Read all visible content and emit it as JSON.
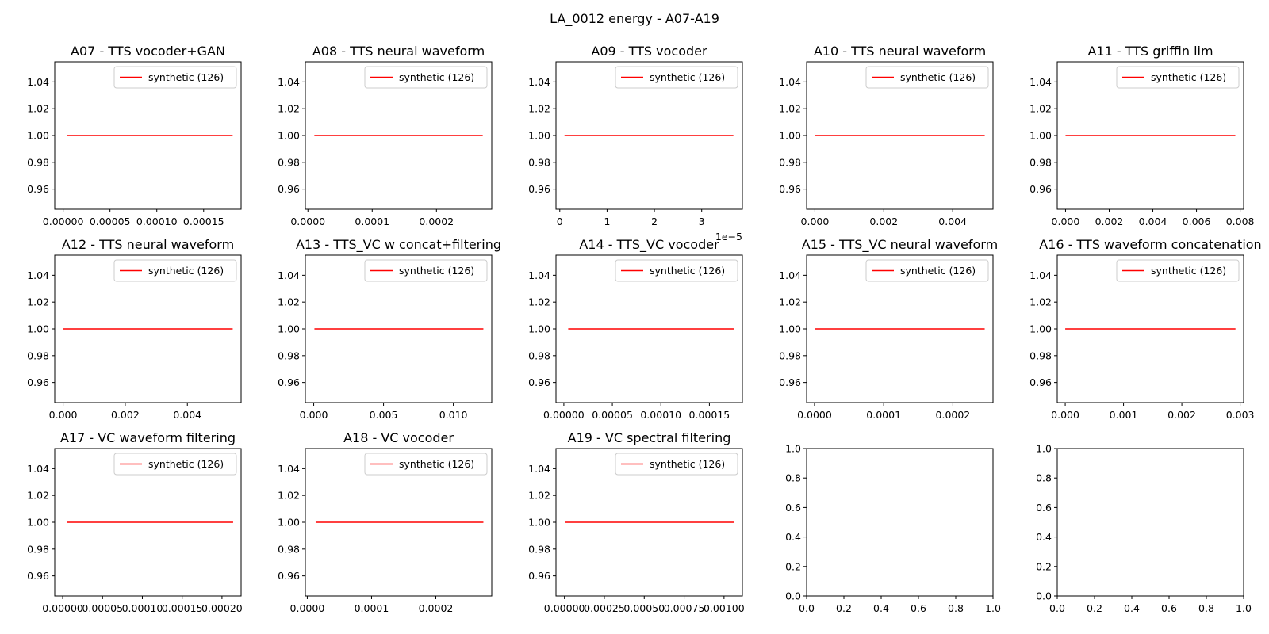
{
  "figure_title": "LA_0012 energy - A07-A19",
  "chart_data": [
    {
      "type": "line",
      "title": "A07 - TTS vocoder+GAN",
      "xlim": [
        -9e-06,
        0.00019
      ],
      "ylim": [
        0.945,
        1.055
      ],
      "xticks": [
        0,
        5e-05,
        0.0001,
        0.00015
      ],
      "xtick_labels": [
        "0.00000",
        "0.00005",
        "0.00010",
        "0.00015"
      ],
      "yticks": [
        0.96,
        0.98,
        1.0,
        1.02,
        1.04
      ],
      "ytick_labels": [
        "0.96",
        "0.98",
        "1.00",
        "1.02",
        "1.04"
      ],
      "x_offset_label": "",
      "series": [
        {
          "name": "synthetic (126)",
          "color": "#ff0000",
          "x": [
            4.5e-06,
            0.000181
          ],
          "y": [
            1.0,
            1.0
          ]
        }
      ],
      "legend": "upper-right"
    },
    {
      "type": "line",
      "title": "A08 - TTS neural waveform",
      "xlim": [
        -4e-06,
        0.000286
      ],
      "ylim": [
        0.945,
        1.055
      ],
      "xticks": [
        0,
        0.0001,
        0.0002
      ],
      "xtick_labels": [
        "0.0000",
        "0.0001",
        "0.0002"
      ],
      "yticks": [
        0.96,
        0.98,
        1.0,
        1.02,
        1.04
      ],
      "ytick_labels": [
        "0.96",
        "0.98",
        "1.00",
        "1.02",
        "1.04"
      ],
      "x_offset_label": "",
      "series": [
        {
          "name": "synthetic (126)",
          "color": "#ff0000",
          "x": [
            1e-05,
            0.000272
          ],
          "y": [
            1.0,
            1.0
          ]
        }
      ],
      "legend": "upper-right"
    },
    {
      "type": "line",
      "title": "A09 - TTS vocoder",
      "xlim": [
        -0.08,
        3.86
      ],
      "ylim": [
        0.945,
        1.055
      ],
      "xticks": [
        0,
        1,
        2,
        3
      ],
      "xtick_labels": [
        "0",
        "1",
        "2",
        "3"
      ],
      "yticks": [
        0.96,
        0.98,
        1.0,
        1.02,
        1.04
      ],
      "ytick_labels": [
        "0.96",
        "0.98",
        "1.00",
        "1.02",
        "1.04"
      ],
      "x_offset_label": "1e−5",
      "series": [
        {
          "name": "synthetic (126)",
          "color": "#ff0000",
          "x": [
            0.1,
            3.67
          ],
          "y": [
            1.0,
            1.0
          ]
        }
      ],
      "legend": "upper-right"
    },
    {
      "type": "line",
      "title": "A10 - TTS neural waveform",
      "xlim": [
        -0.00024,
        0.00517
      ],
      "ylim": [
        0.945,
        1.055
      ],
      "xticks": [
        0,
        0.002,
        0.004
      ],
      "xtick_labels": [
        "0.000",
        "0.002",
        "0.004"
      ],
      "yticks": [
        0.96,
        0.98,
        1.0,
        1.02,
        1.04
      ],
      "ytick_labels": [
        "0.96",
        "0.98",
        "1.00",
        "1.02",
        "1.04"
      ],
      "x_offset_label": "",
      "series": [
        {
          "name": "synthetic (126)",
          "color": "#ff0000",
          "x": [
            0.0,
            0.00493
          ],
          "y": [
            1.0,
            1.0
          ]
        }
      ],
      "legend": "upper-right"
    },
    {
      "type": "line",
      "title": "A11 - TTS griffin lim",
      "xlim": [
        -0.00038,
        0.00816
      ],
      "ylim": [
        0.945,
        1.055
      ],
      "xticks": [
        0,
        0.002,
        0.004,
        0.006,
        0.008
      ],
      "xtick_labels": [
        "0.000",
        "0.002",
        "0.004",
        "0.006",
        "0.008"
      ],
      "yticks": [
        0.96,
        0.98,
        1.0,
        1.02,
        1.04
      ],
      "ytick_labels": [
        "0.96",
        "0.98",
        "1.00",
        "1.02",
        "1.04"
      ],
      "x_offset_label": "",
      "series": [
        {
          "name": "synthetic (126)",
          "color": "#ff0000",
          "x": [
            0.0,
            0.00778
          ],
          "y": [
            1.0,
            1.0
          ]
        }
      ],
      "legend": "upper-right"
    },
    {
      "type": "line",
      "title": "A12 - TTS neural waveform",
      "xlim": [
        -0.00027,
        0.00573
      ],
      "ylim": [
        0.945,
        1.055
      ],
      "xticks": [
        0,
        0.002,
        0.004
      ],
      "xtick_labels": [
        "0.000",
        "0.002",
        "0.004"
      ],
      "yticks": [
        0.96,
        0.98,
        1.0,
        1.02,
        1.04
      ],
      "ytick_labels": [
        "0.96",
        "0.98",
        "1.00",
        "1.02",
        "1.04"
      ],
      "x_offset_label": "",
      "series": [
        {
          "name": "synthetic (126)",
          "color": "#ff0000",
          "x": [
            0.0,
            0.00546
          ],
          "y": [
            1.0,
            1.0
          ]
        }
      ],
      "legend": "upper-right"
    },
    {
      "type": "line",
      "title": "A13 - TTS_VC w concat+filtering",
      "xlim": [
        -0.0006,
        0.01275
      ],
      "ylim": [
        0.945,
        1.055
      ],
      "xticks": [
        0,
        0.005,
        0.01
      ],
      "xtick_labels": [
        "0.000",
        "0.005",
        "0.010"
      ],
      "yticks": [
        0.96,
        0.98,
        1.0,
        1.02,
        1.04
      ],
      "ytick_labels": [
        "0.96",
        "0.98",
        "1.00",
        "1.02",
        "1.04"
      ],
      "x_offset_label": "",
      "series": [
        {
          "name": "synthetic (126)",
          "color": "#ff0000",
          "x": [
            5e-05,
            0.01215
          ],
          "y": [
            1.0,
            1.0
          ]
        }
      ],
      "legend": "upper-right"
    },
    {
      "type": "line",
      "title": "A14 - TTS_VC vocoder",
      "xlim": [
        -8.1e-06,
        0.000184
      ],
      "ylim": [
        0.945,
        1.055
      ],
      "xticks": [
        0,
        5e-05,
        0.0001,
        0.00015
      ],
      "xtick_labels": [
        "0.00000",
        "0.00005",
        "0.00010",
        "0.00015"
      ],
      "yticks": [
        0.96,
        0.98,
        1.0,
        1.02,
        1.04
      ],
      "ytick_labels": [
        "0.96",
        "0.98",
        "1.00",
        "1.02",
        "1.04"
      ],
      "x_offset_label": "",
      "series": [
        {
          "name": "synthetic (126)",
          "color": "#ff0000",
          "x": [
            4.5e-06,
            0.000175
          ],
          "y": [
            1.0,
            1.0
          ]
        }
      ],
      "legend": "upper-right"
    },
    {
      "type": "line",
      "title": "A15 - TTS_VC neural waveform",
      "xlim": [
        -1.14e-05,
        0.000258
      ],
      "ylim": [
        0.945,
        1.055
      ],
      "xticks": [
        0,
        0.0001,
        0.0002
      ],
      "xtick_labels": [
        "0.0000",
        "0.0001",
        "0.0002"
      ],
      "yticks": [
        0.96,
        0.98,
        1.0,
        1.02,
        1.04
      ],
      "ytick_labels": [
        "0.96",
        "0.98",
        "1.00",
        "1.02",
        "1.04"
      ],
      "x_offset_label": "",
      "series": [
        {
          "name": "synthetic (126)",
          "color": "#ff0000",
          "x": [
            1e-06,
            0.000246
          ],
          "y": [
            1.0,
            1.0
          ]
        }
      ],
      "legend": "upper-right"
    },
    {
      "type": "line",
      "title": "A16 - TTS waveform concatenation",
      "xlim": [
        -0.000137,
        0.00306
      ],
      "ylim": [
        0.945,
        1.055
      ],
      "xticks": [
        0,
        0.001,
        0.002,
        0.003
      ],
      "xtick_labels": [
        "0.000",
        "0.001",
        "0.002",
        "0.003"
      ],
      "yticks": [
        0.96,
        0.98,
        1.0,
        1.02,
        1.04
      ],
      "ytick_labels": [
        "0.96",
        "0.98",
        "1.00",
        "1.02",
        "1.04"
      ],
      "x_offset_label": "",
      "series": [
        {
          "name": "synthetic (126)",
          "color": "#ff0000",
          "x": [
            0.0,
            0.00292
          ],
          "y": [
            1.0,
            1.0
          ]
        }
      ],
      "legend": "upper-right"
    },
    {
      "type": "line",
      "title": "A17 - VC waveform filtering",
      "xlim": [
        -1e-05,
        0.000224
      ],
      "ylim": [
        0.945,
        1.055
      ],
      "xticks": [
        0,
        5e-05,
        0.0001,
        0.00015,
        0.0002
      ],
      "xtick_labels": [
        "0.00000",
        "0.00005",
        "0.00010",
        "0.00015",
        "0.00020"
      ],
      "yticks": [
        0.96,
        0.98,
        1.0,
        1.02,
        1.04
      ],
      "ytick_labels": [
        "0.96",
        "0.98",
        "1.00",
        "1.02",
        "1.04"
      ],
      "x_offset_label": "",
      "series": [
        {
          "name": "synthetic (126)",
          "color": "#ff0000",
          "x": [
            5e-06,
            0.000214
          ],
          "y": [
            1.0,
            1.0
          ]
        }
      ],
      "legend": "upper-right"
    },
    {
      "type": "line",
      "title": "A18 - VC vocoder",
      "xlim": [
        -3e-06,
        0.000287
      ],
      "ylim": [
        0.945,
        1.055
      ],
      "xticks": [
        0,
        0.0001,
        0.0002
      ],
      "xtick_labels": [
        "0.0000",
        "0.0001",
        "0.0002"
      ],
      "yticks": [
        0.96,
        0.98,
        1.0,
        1.02,
        1.04
      ],
      "ytick_labels": [
        "0.96",
        "0.98",
        "1.00",
        "1.02",
        "1.04"
      ],
      "x_offset_label": "",
      "series": [
        {
          "name": "synthetic (126)",
          "color": "#ff0000",
          "x": [
            1.3e-05,
            0.000274
          ],
          "y": [
            1.0,
            1.0
          ]
        }
      ],
      "legend": "upper-right"
    },
    {
      "type": "line",
      "title": "A19 - VC spectral filtering",
      "xlim": [
        -5.3e-05,
        0.001115
      ],
      "ylim": [
        0.945,
        1.055
      ],
      "xticks": [
        0,
        0.00025,
        0.0005,
        0.00075,
        0.001
      ],
      "xtick_labels": [
        "0.00000",
        "0.00025",
        "0.00050",
        "0.00075",
        "0.00100"
      ],
      "yticks": [
        0.96,
        0.98,
        1.0,
        1.02,
        1.04
      ],
      "ytick_labels": [
        "0.96",
        "0.98",
        "1.00",
        "1.02",
        "1.04"
      ],
      "x_offset_label": "",
      "series": [
        {
          "name": "synthetic (126)",
          "color": "#ff0000",
          "x": [
            5e-06,
            0.001065
          ],
          "y": [
            1.0,
            1.0
          ]
        }
      ],
      "legend": "upper-right"
    },
    {
      "type": "line",
      "title": "",
      "xlim": [
        0,
        1
      ],
      "ylim": [
        0,
        1
      ],
      "xticks": [
        0,
        0.2,
        0.4,
        0.6,
        0.8,
        1.0
      ],
      "xtick_labels": [
        "0.0",
        "0.2",
        "0.4",
        "0.6",
        "0.8",
        "1.0"
      ],
      "yticks": [
        0,
        0.2,
        0.4,
        0.6,
        0.8,
        1.0
      ],
      "ytick_labels": [
        "0.0",
        "0.2",
        "0.4",
        "0.6",
        "0.8",
        "1.0"
      ],
      "x_offset_label": "",
      "series": [],
      "legend": ""
    },
    {
      "type": "line",
      "title": "",
      "xlim": [
        0,
        1
      ],
      "ylim": [
        0,
        1
      ],
      "xticks": [
        0,
        0.2,
        0.4,
        0.6,
        0.8,
        1.0
      ],
      "xtick_labels": [
        "0.0",
        "0.2",
        "0.4",
        "0.6",
        "0.8",
        "1.0"
      ],
      "yticks": [
        0,
        0.2,
        0.4,
        0.6,
        0.8,
        1.0
      ],
      "ytick_labels": [
        "0.0",
        "0.2",
        "0.4",
        "0.6",
        "0.8",
        "1.0"
      ],
      "x_offset_label": "",
      "series": [],
      "legend": ""
    }
  ]
}
